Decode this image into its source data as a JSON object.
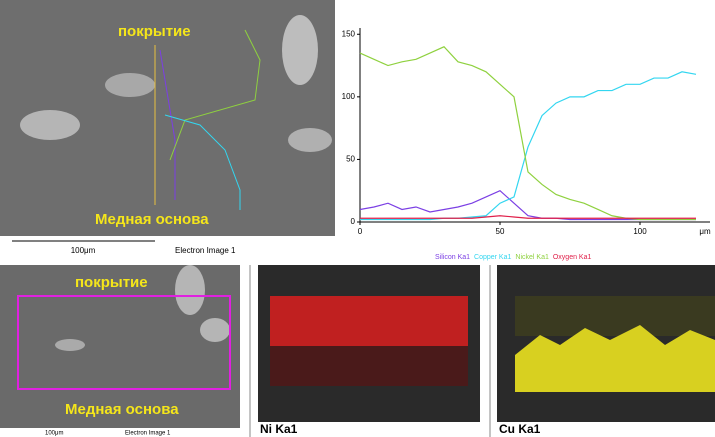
{
  "top_image": {
    "coating_label": "покрытие",
    "base_label": "Медная основа",
    "scale_label": "100μm",
    "caption": "Electron Image 1"
  },
  "bottom_image": {
    "coating_label": "покрытие",
    "base_label": "Медная основа",
    "scale_label": "100μm",
    "caption": "Electron Image 1"
  },
  "maps": [
    {
      "label": "Ni Ka1"
    },
    {
      "label": "Cu Ka1"
    }
  ],
  "chart_data": {
    "type": "line",
    "x_unit": "μm",
    "x": [
      0,
      5,
      10,
      15,
      20,
      25,
      30,
      35,
      40,
      45,
      50,
      55,
      60,
      65,
      70,
      75,
      80,
      85,
      90,
      95,
      100,
      105,
      110,
      115,
      120
    ],
    "xlim": [
      0,
      125
    ],
    "xticks": [
      0,
      50,
      100
    ],
    "ylim": [
      0,
      155
    ],
    "yticks": [
      0,
      50,
      100,
      150
    ],
    "series": [
      {
        "name": "Silicon Ka1",
        "color": "#7b3fe4",
        "values": [
          10,
          12,
          15,
          10,
          12,
          8,
          10,
          12,
          15,
          20,
          25,
          15,
          5,
          3,
          3,
          2,
          2,
          2,
          2,
          2,
          2,
          2,
          2,
          2,
          2
        ]
      },
      {
        "name": "Copper Ka1",
        "color": "#33d6f0",
        "values": [
          2,
          2,
          2,
          2,
          2,
          2,
          3,
          3,
          4,
          5,
          15,
          20,
          60,
          85,
          95,
          100,
          100,
          105,
          105,
          110,
          110,
          115,
          115,
          120,
          118
        ]
      },
      {
        "name": "Nickel Ka1",
        "color": "#8fd13f",
        "values": [
          135,
          130,
          125,
          128,
          130,
          135,
          140,
          128,
          125,
          120,
          110,
          100,
          40,
          30,
          22,
          18,
          15,
          10,
          5,
          3,
          2,
          2,
          2,
          2,
          2
        ]
      },
      {
        "name": "Oxygen Ka1",
        "color": "#e0204a",
        "values": [
          3,
          3,
          3,
          3,
          3,
          3,
          3,
          3,
          3,
          4,
          5,
          4,
          3,
          3,
          3,
          3,
          3,
          3,
          3,
          3,
          3,
          3,
          3,
          3,
          3
        ]
      }
    ]
  }
}
